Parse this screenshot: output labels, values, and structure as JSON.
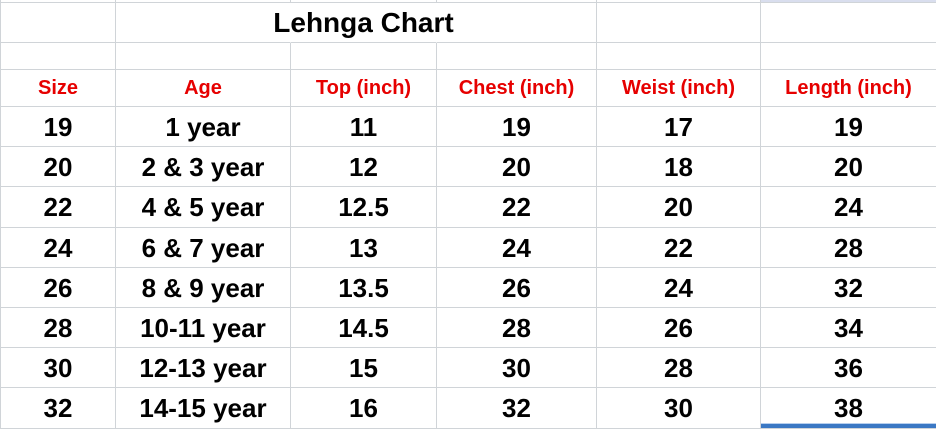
{
  "sheet": {
    "title": "Lehnga Chart",
    "colors": {
      "header_text": "#e60000",
      "data_text": "#000000",
      "gridline": "#d0d4d8",
      "selection_border_blue": "#3b78c4",
      "selection_border_blue_light": "#b7cfee",
      "corner_strip_blue": "#d9deee"
    },
    "table": {
      "headers": [
        "Size",
        "Age",
        "Top (inch)",
        "Chest (inch)",
        "Weist (inch)",
        "Length (inch)"
      ],
      "rows": [
        [
          "19",
          "1 year",
          "11",
          "19",
          "17",
          "19"
        ],
        [
          "20",
          "2 & 3 year",
          "12",
          "20",
          "18",
          "20"
        ],
        [
          "22",
          "4 & 5 year",
          "12.5",
          "22",
          "20",
          "24"
        ],
        [
          "24",
          "6 & 7 year",
          "13",
          "24",
          "22",
          "28"
        ],
        [
          "26",
          "8 & 9 year",
          "13.5",
          "26",
          "24",
          "32"
        ],
        [
          "28",
          "10-11 year",
          "14.5",
          "28",
          "26",
          "34"
        ],
        [
          "30",
          "12-13 year",
          "15",
          "30",
          "28",
          "36"
        ],
        [
          "32",
          "14-15 year",
          "16",
          "32",
          "30",
          "38"
        ]
      ]
    }
  }
}
